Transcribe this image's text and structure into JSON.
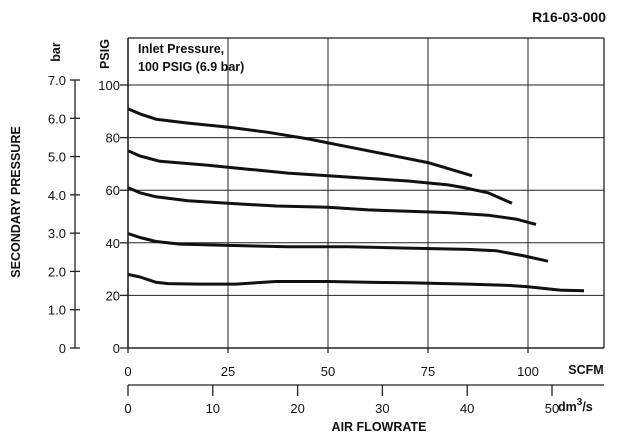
{
  "chart_data": {
    "type": "line",
    "part_number": "R16-03-000",
    "annotation": [
      "Inlet Pressure,",
      "100 PSIG (6.9 bar)"
    ],
    "ylabel": "SECONDARY PRESSURE",
    "y_left": {
      "unit": "PSIG",
      "ticks": [
        0,
        20,
        40,
        60,
        80,
        100
      ],
      "range": [
        0,
        100
      ]
    },
    "y_bar": {
      "unit": "bar",
      "ticks": [
        "0",
        "1.0",
        "2.0",
        "3.0",
        "4.0",
        "5.0",
        "6.0",
        "7.0"
      ],
      "range": [
        0,
        7
      ]
    },
    "x_scfm": {
      "unit": "SCFM",
      "ticks": [
        0,
        25,
        50,
        75,
        100
      ],
      "range": [
        0,
        100
      ]
    },
    "x_dm3s": {
      "unit_main": "dm",
      "unit_sup": "3",
      "unit_tail": "/s",
      "ticks": [
        0,
        10,
        20,
        30,
        40,
        50
      ],
      "range": [
        0,
        50
      ]
    },
    "xlabel": "AIR FLOWRATE",
    "grid": true,
    "series": [
      {
        "points": [
          [
            0,
            91
          ],
          [
            3,
            89
          ],
          [
            7,
            87
          ],
          [
            15,
            85.5
          ],
          [
            25,
            84
          ],
          [
            35,
            82
          ],
          [
            45,
            79.5
          ],
          [
            55,
            76.5
          ],
          [
            65,
            73.5
          ],
          [
            75,
            70.5
          ],
          [
            86,
            65.5
          ]
        ]
      },
      {
        "points": [
          [
            0,
            75
          ],
          [
            3,
            73
          ],
          [
            8,
            71
          ],
          [
            20,
            69.5
          ],
          [
            30,
            68
          ],
          [
            40,
            66.5
          ],
          [
            50,
            65.5
          ],
          [
            60,
            64.5
          ],
          [
            70,
            63.5
          ],
          [
            80,
            62
          ],
          [
            84,
            61
          ],
          [
            90,
            59
          ],
          [
            96,
            55
          ]
        ]
      },
      {
        "points": [
          [
            0,
            61
          ],
          [
            3,
            59
          ],
          [
            7,
            57.5
          ],
          [
            15,
            56
          ],
          [
            25,
            55
          ],
          [
            37,
            54
          ],
          [
            50,
            53.5
          ],
          [
            60,
            52.5
          ],
          [
            70,
            52
          ],
          [
            80,
            51.5
          ],
          [
            90,
            50.5
          ],
          [
            97,
            49
          ],
          [
            102,
            47
          ]
        ]
      },
      {
        "points": [
          [
            0,
            43.5
          ],
          [
            3,
            42
          ],
          [
            7,
            40.5
          ],
          [
            13,
            39.5
          ],
          [
            25,
            39
          ],
          [
            40,
            38.5
          ],
          [
            55,
            38.5
          ],
          [
            70,
            38
          ],
          [
            85,
            37.5
          ],
          [
            92,
            37
          ],
          [
            99,
            35
          ],
          [
            105,
            33
          ]
        ]
      },
      {
        "points": [
          [
            0,
            28
          ],
          [
            3,
            27
          ],
          [
            7,
            25
          ],
          [
            10,
            24.5
          ],
          [
            18,
            24.3
          ],
          [
            27,
            24.3
          ],
          [
            37,
            25.3
          ],
          [
            50,
            25.3
          ],
          [
            60,
            25
          ],
          [
            70,
            24.8
          ],
          [
            85,
            24.3
          ],
          [
            95,
            23.8
          ],
          [
            100,
            23.3
          ],
          [
            108,
            22
          ],
          [
            114,
            21.8
          ]
        ]
      }
    ]
  }
}
